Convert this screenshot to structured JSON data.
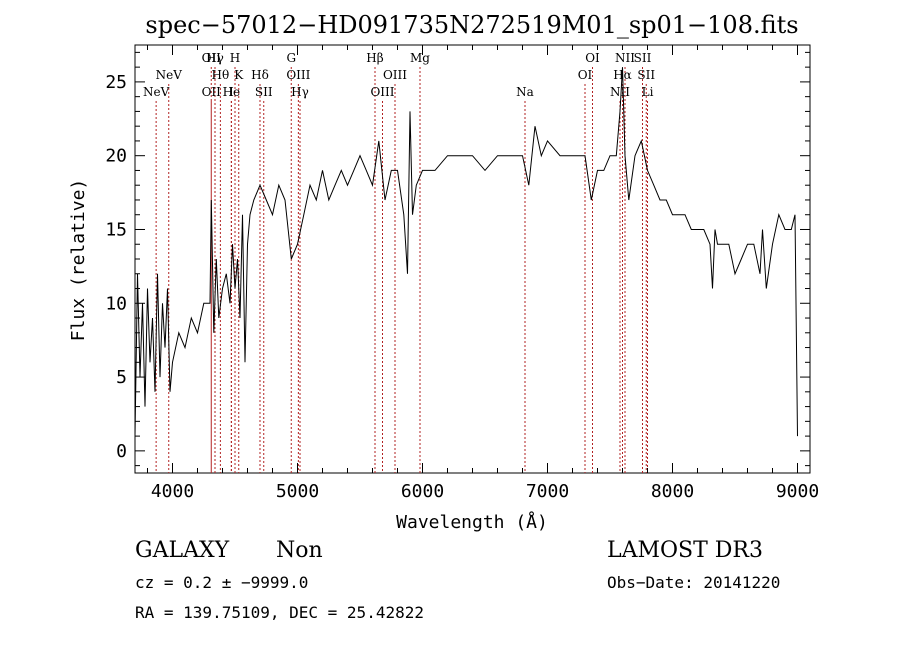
{
  "chart_data": {
    "type": "line",
    "title": "spec−57012−HD091735N272519M01_sp01−108.fits",
    "xlabel": "Wavelength (Å)",
    "ylabel": "Flux (relative)",
    "xlim": [
      3700,
      9100
    ],
    "ylim": [
      -1.5,
      27.5
    ],
    "xticks": [
      4000,
      5000,
      6000,
      7000,
      8000,
      9000
    ],
    "yticks": [
      0,
      5,
      10,
      15,
      20,
      25
    ],
    "grid": false,
    "line_color": "#000000",
    "marker_color": "#b22222",
    "series": [
      {
        "x": [
          3700,
          3720,
          3740,
          3760,
          3780,
          3800,
          3820,
          3840,
          3860,
          3880,
          3900,
          3920,
          3940,
          3960,
          3980,
          4000,
          4050,
          4100,
          4150,
          4200,
          4250,
          4300,
          4310,
          4330,
          4350,
          4370,
          4400,
          4430,
          4460,
          4480,
          4500,
          4520,
          4540,
          4560,
          4580,
          4600,
          4620,
          4650,
          4700,
          4750,
          4800,
          4850,
          4900,
          4950,
          5000,
          5050,
          5100,
          5150,
          5200,
          5250,
          5300,
          5350,
          5400,
          5450,
          5500,
          5550,
          5600,
          5650,
          5700,
          5750,
          5800,
          5850,
          5880,
          5900,
          5920,
          5950,
          6000,
          6100,
          6200,
          6300,
          6400,
          6500,
          6600,
          6700,
          6800,
          6850,
          6900,
          6950,
          7000,
          7100,
          7200,
          7300,
          7350,
          7400,
          7450,
          7500,
          7550,
          7580,
          7600,
          7620,
          7650,
          7700,
          7750,
          7800,
          7850,
          7900,
          7950,
          8000,
          8050,
          8100,
          8150,
          8200,
          8250,
          8300,
          8320,
          8340,
          8360,
          8400,
          8450,
          8500,
          8550,
          8600,
          8650,
          8700,
          8720,
          8750,
          8800,
          8850,
          8900,
          8950,
          8980,
          9000
        ],
        "values": [
          1,
          12,
          5,
          10,
          3,
          11,
          6,
          9,
          4,
          12,
          5,
          10,
          7,
          11,
          4,
          6,
          8,
          7,
          9,
          8,
          10,
          10,
          17,
          8,
          13,
          9,
          11,
          12,
          10,
          14,
          11,
          13,
          9,
          16,
          6,
          14,
          16,
          17,
          18,
          17,
          16,
          18,
          17,
          13,
          14,
          16,
          18,
          17,
          19,
          17,
          18,
          19,
          18,
          19,
          20,
          19,
          18,
          21,
          17,
          19,
          19,
          16,
          12,
          23,
          16,
          18,
          19,
          19,
          20,
          20,
          20,
          19,
          20,
          20,
          20,
          18,
          22,
          20,
          21,
          20,
          20,
          20,
          17,
          19,
          19,
          20,
          20,
          23,
          26,
          20,
          17,
          20,
          21,
          19,
          18,
          17,
          17,
          16,
          16,
          16,
          15,
          15,
          15,
          14,
          11,
          15,
          14,
          14,
          14,
          12,
          13,
          14,
          14,
          12,
          15,
          11,
          14,
          16,
          15,
          15,
          16,
          1
        ]
      }
    ],
    "line_markers": [
      {
        "label": "NeV",
        "wavelength": 3869,
        "label_row": 2
      },
      {
        "label": "NeV",
        "wavelength": 3970,
        "label_row": 1
      },
      {
        "label": "OII",
        "wavelength": 4310,
        "label_row": 0
      },
      {
        "label": "OII",
        "wavelength": 4310,
        "label_row": 2
      },
      {
        "label": "Hγ",
        "wavelength": 4340,
        "label_row": 0
      },
      {
        "label": "Hθ",
        "wavelength": 4383,
        "label_row": 1
      },
      {
        "label": "He",
        "wavelength": 4471,
        "label_row": 2
      },
      {
        "label": "I",
        "wavelength": 4471,
        "label_row": 2
      },
      {
        "label": "H",
        "wavelength": 4500,
        "label_row": 0
      },
      {
        "label": "K",
        "wavelength": 4530,
        "label_row": 1
      },
      {
        "label": "Hδ",
        "wavelength": 4700,
        "label_row": 1
      },
      {
        "label": "SII",
        "wavelength": 4730,
        "label_row": 2
      },
      {
        "label": "G",
        "wavelength": 4950,
        "label_row": 0
      },
      {
        "label": "OIII",
        "wavelength": 5007,
        "label_row": 1
      },
      {
        "label": "Hγ",
        "wavelength": 5020,
        "label_row": 2
      },
      {
        "label": "Hβ",
        "wavelength": 5620,
        "label_row": 0
      },
      {
        "label": "OIII",
        "wavelength": 5680,
        "label_row": 2
      },
      {
        "label": "OIII",
        "wavelength": 5780,
        "label_row": 1
      },
      {
        "label": "Mg",
        "wavelength": 5980,
        "label_row": 0
      },
      {
        "label": "Na",
        "wavelength": 6820,
        "label_row": 2
      },
      {
        "label": "OI",
        "wavelength": 7300,
        "label_row": 1
      },
      {
        "label": "OI",
        "wavelength": 7360,
        "label_row": 0
      },
      {
        "label": "Hα",
        "wavelength": 7600,
        "label_row": 1
      },
      {
        "label": "NII",
        "wavelength": 7580,
        "label_row": 2
      },
      {
        "label": "NII",
        "wavelength": 7620,
        "label_row": 0
      },
      {
        "label": "SII",
        "wavelength": 7760,
        "label_row": 0
      },
      {
        "label": "SII",
        "wavelength": 7790,
        "label_row": 1
      },
      {
        "label": "Li",
        "wavelength": 7800,
        "label_row": 2
      }
    ]
  },
  "info": {
    "classification": "GALAXY",
    "subclass": "Non",
    "survey": "LAMOST DR3",
    "cz_line": "cz = 0.2 ± −9999.0",
    "obs_date_line": "Obs−Date: 20141220",
    "radec_line": "RA = 139.75109, DEC =  25.42822"
  }
}
